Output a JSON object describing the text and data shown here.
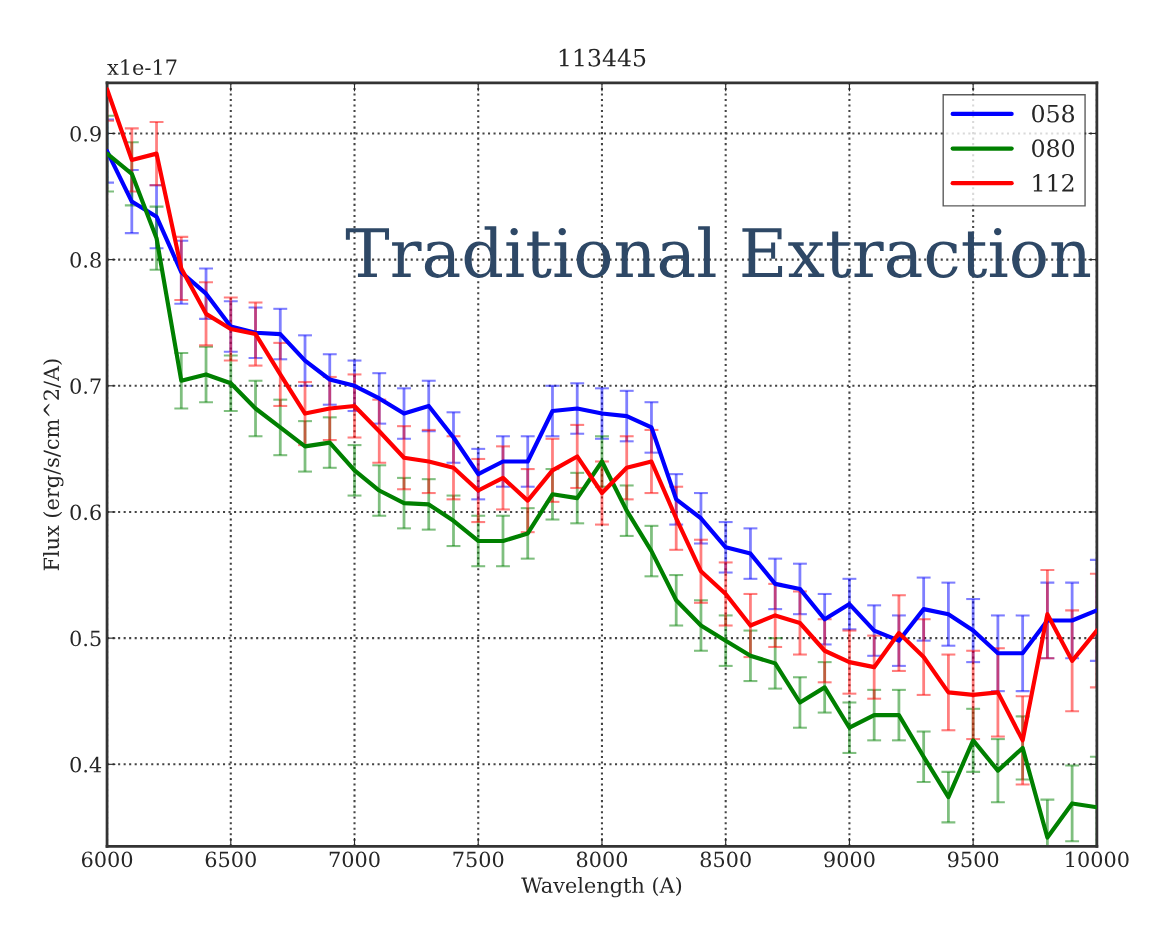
{
  "chart_data": {
    "type": "line",
    "title": "113445",
    "xlabel": "Wavelength (A)",
    "ylabel": "Flux (erg/s/cm^2/A)",
    "annotations": [
      "x1e-17",
      "Traditional Extraction"
    ],
    "x": [
      6000,
      6100,
      6200,
      6300,
      6400,
      6500,
      6600,
      6700,
      6800,
      6900,
      7000,
      7100,
      7200,
      7300,
      7400,
      7500,
      7600,
      7700,
      7800,
      7900,
      8000,
      8100,
      8200,
      8300,
      8400,
      8500,
      8600,
      8700,
      8800,
      8900,
      9000,
      9100,
      9200,
      9300,
      9400,
      9500,
      9600,
      9700,
      9800,
      9900,
      10000
    ],
    "series": [
      {
        "name": "058",
        "color": "#0000ff",
        "values": [
          0.886,
          0.846,
          0.834,
          0.79,
          0.773,
          0.747,
          0.742,
          0.741,
          0.72,
          0.705,
          0.7,
          0.69,
          0.678,
          0.684,
          0.659,
          0.63,
          0.64,
          0.64,
          0.68,
          0.682,
          0.678,
          0.676,
          0.667,
          0.61,
          0.595,
          0.572,
          0.567,
          0.543,
          0.539,
          0.515,
          0.527,
          0.506,
          0.498,
          0.523,
          0.519,
          0.506,
          0.488,
          0.488,
          0.514,
          0.514,
          0.522
        ],
        "errors": [
          0.025,
          0.025,
          0.025,
          0.025,
          0.02,
          0.02,
          0.02,
          0.02,
          0.02,
          0.02,
          0.02,
          0.02,
          0.02,
          0.02,
          0.02,
          0.02,
          0.02,
          0.02,
          0.02,
          0.02,
          0.02,
          0.02,
          0.02,
          0.02,
          0.02,
          0.02,
          0.02,
          0.02,
          0.02,
          0.02,
          0.02,
          0.02,
          0.02,
          0.025,
          0.025,
          0.025,
          0.03,
          0.03,
          0.03,
          0.03,
          0.04
        ]
      },
      {
        "name": "080",
        "color": "#008000",
        "values": [
          0.884,
          0.868,
          0.817,
          0.704,
          0.709,
          0.702,
          0.682,
          0.667,
          0.652,
          0.655,
          0.633,
          0.617,
          0.607,
          0.606,
          0.593,
          0.577,
          0.577,
          0.583,
          0.614,
          0.611,
          0.64,
          0.601,
          0.569,
          0.53,
          0.51,
          0.498,
          0.486,
          0.48,
          0.449,
          0.461,
          0.429,
          0.439,
          0.439,
          0.406,
          0.374,
          0.419,
          0.395,
          0.413,
          0.342,
          0.369,
          0.366
        ],
        "errors": [
          0.03,
          0.025,
          0.025,
          0.022,
          0.022,
          0.022,
          0.022,
          0.022,
          0.02,
          0.02,
          0.02,
          0.02,
          0.02,
          0.02,
          0.02,
          0.02,
          0.02,
          0.02,
          0.02,
          0.02,
          0.02,
          0.02,
          0.02,
          0.02,
          0.02,
          0.02,
          0.02,
          0.02,
          0.02,
          0.02,
          0.02,
          0.02,
          0.02,
          0.02,
          0.02,
          0.025,
          0.025,
          0.025,
          0.03,
          0.03,
          0.04
        ]
      },
      {
        "name": "112",
        "color": "#ff0000",
        "values": [
          0.935,
          0.879,
          0.884,
          0.793,
          0.757,
          0.745,
          0.741,
          0.709,
          0.678,
          0.682,
          0.684,
          0.664,
          0.643,
          0.64,
          0.635,
          0.617,
          0.627,
          0.609,
          0.633,
          0.644,
          0.615,
          0.635,
          0.64,
          0.595,
          0.553,
          0.535,
          0.51,
          0.518,
          0.512,
          0.49,
          0.481,
          0.477,
          0.504,
          0.485,
          0.457,
          0.455,
          0.457,
          0.419,
          0.519,
          0.482,
          0.506
        ],
        "errors": [
          0.025,
          0.025,
          0.025,
          0.025,
          0.025,
          0.025,
          0.025,
          0.025,
          0.025,
          0.025,
          0.025,
          0.025,
          0.025,
          0.025,
          0.025,
          0.025,
          0.025,
          0.025,
          0.025,
          0.025,
          0.025,
          0.025,
          0.025,
          0.025,
          0.025,
          0.025,
          0.025,
          0.025,
          0.025,
          0.025,
          0.025,
          0.025,
          0.03,
          0.03,
          0.03,
          0.035,
          0.035,
          0.035,
          0.035,
          0.04,
          0.045
        ]
      }
    ],
    "xlim": [
      6000,
      10000
    ],
    "ylim": [
      0.335,
      0.94
    ],
    "xticks": [
      6000,
      6500,
      7000,
      7500,
      8000,
      8500,
      9000,
      9500,
      10000
    ],
    "yticks": [
      0.4,
      0.5,
      0.6,
      0.7,
      0.8,
      0.9
    ],
    "grid": true,
    "legend": "top right",
    "line_style": "solid",
    "marker": "none"
  }
}
